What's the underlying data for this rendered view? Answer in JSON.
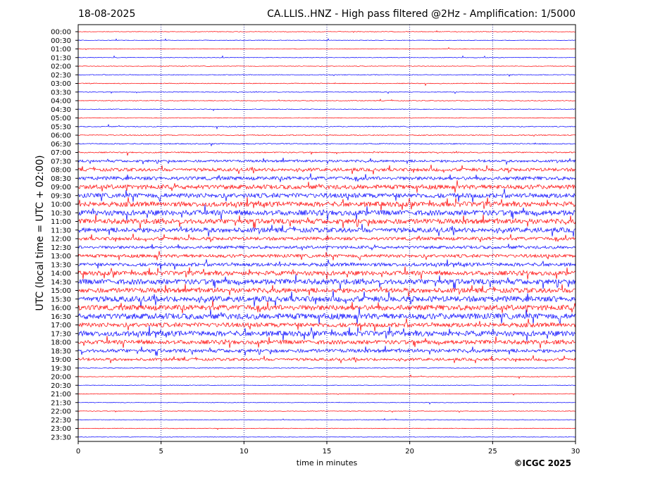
{
  "header": {
    "date": "18-08-2025",
    "title": "CA.LLIS..HNZ - High pass filtered @2Hz - Amplification: 1/5000"
  },
  "footer": {
    "copyright": "©ICGC 2025"
  },
  "colors": {
    "even_rows": "#ff0000",
    "odd_rows": "#0000ff",
    "grid": "#00008b"
  },
  "chart_data": {
    "type": "line",
    "title": "CA.LLIS..HNZ - High pass filtered @2Hz - Amplification: 1/5000",
    "xlabel": "time in minutes",
    "ylabel": "UTC (local time = UTC + 02:00)",
    "xlim": [
      0,
      30
    ],
    "x_ticks": [
      0,
      5,
      10,
      15,
      20,
      25,
      30
    ],
    "grid": "vertical dotted lines at 5-minute intervals",
    "rows": [
      "00:00",
      "00:30",
      "01:00",
      "01:30",
      "02:00",
      "02:30",
      "03:00",
      "03:30",
      "04:00",
      "04:30",
      "05:00",
      "05:30",
      "06:00",
      "06:30",
      "07:00",
      "07:30",
      "08:00",
      "08:30",
      "09:00",
      "09:30",
      "10:00",
      "10:30",
      "11:00",
      "11:30",
      "12:00",
      "12:30",
      "13:00",
      "13:30",
      "14:00",
      "14:30",
      "15:00",
      "15:30",
      "16:00",
      "16:30",
      "17:00",
      "17:30",
      "18:00",
      "18:30",
      "19:00",
      "19:30",
      "20:00",
      "20:30",
      "21:00",
      "21:30",
      "22:00",
      "22:30",
      "23:00",
      "23:30"
    ],
    "noise_level": [
      0.4,
      0.4,
      0.4,
      0.4,
      0.4,
      0.5,
      0.5,
      0.5,
      0.5,
      0.5,
      0.5,
      0.6,
      0.6,
      0.7,
      0.8,
      1.6,
      2.2,
      2.4,
      3.0,
      3.2,
      3.4,
      3.6,
      3.4,
      3.2,
      2.2,
      2.0,
      2.2,
      2.4,
      3.0,
      3.6,
      3.2,
      3.8,
      3.6,
      4.0,
      3.0,
      3.6,
      2.8,
      2.4,
      1.8,
      0.6,
      0.5,
      0.4,
      0.4,
      0.4,
      0.4,
      0.4,
      0.4,
      0.4
    ]
  }
}
